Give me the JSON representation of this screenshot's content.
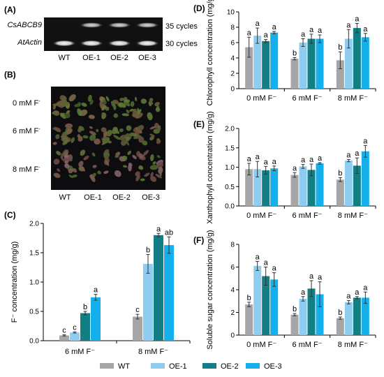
{
  "colors": {
    "WT": "#a6a6a6",
    "OE-1": "#8fcdf0",
    "OE-2": "#117f83",
    "OE-3": "#15b0ec"
  },
  "legend": [
    "WT",
    "OE-1",
    "OE-2",
    "OE-3"
  ],
  "panel_a": {
    "label": "(A)",
    "genes": [
      "CsABCB9",
      "AtActin"
    ],
    "cycles": [
      "35 cycles",
      "30 cycles"
    ],
    "lanes": [
      "WT",
      "OE-1",
      "OE-2",
      "OE-3"
    ]
  },
  "panel_b": {
    "label": "(B)",
    "rows": [
      "0 mM F",
      "6 mM F",
      "8 mM F"
    ],
    "superscript": "-",
    "lanes": [
      "WT",
      "OE-1",
      "OE-2",
      "OE-3"
    ]
  },
  "chart_data": [
    {
      "id": "C",
      "panel_label": "(C)",
      "type": "bar",
      "ylabel": "F⁻ concentration (mg/g)",
      "categories": [
        "6 mM F⁻",
        "8 mM F⁻"
      ],
      "ylim": [
        0,
        2.0
      ],
      "ticks": [
        0.0,
        0.5,
        1.0,
        1.5,
        2.0
      ],
      "tick_labels": [
        "0.0",
        "0.5",
        "1.0",
        "1.5",
        "2.0"
      ],
      "series": [
        {
          "name": "WT",
          "values": [
            0.09,
            0.41
          ],
          "errors": [
            0.01,
            0.04
          ],
          "letters": [
            "c",
            "c"
          ]
        },
        {
          "name": "OE-1",
          "values": [
            0.14,
            1.31
          ],
          "errors": [
            0.01,
            0.16
          ],
          "letters": [
            "c",
            "b"
          ]
        },
        {
          "name": "OE-2",
          "values": [
            0.47,
            1.8
          ],
          "errors": [
            0.03,
            0.03
          ],
          "letters": [
            "b",
            "a"
          ]
        },
        {
          "name": "OE-3",
          "values": [
            0.74,
            1.63
          ],
          "errors": [
            0.05,
            0.14
          ],
          "letters": [
            "a",
            "ab"
          ]
        }
      ]
    },
    {
      "id": "D",
      "panel_label": "(D)",
      "type": "bar",
      "ylabel": "Chlorophyll concentration (mg/g)",
      "categories": [
        "0 mM F⁻",
        "6 mM F⁻",
        "8 mM F⁻"
      ],
      "ylim": [
        0,
        10
      ],
      "ticks": [
        0,
        2,
        4,
        6,
        8,
        10
      ],
      "tick_labels": [
        "0",
        "2",
        "4",
        "6",
        "8",
        "10"
      ],
      "series": [
        {
          "name": "WT",
          "values": [
            5.4,
            3.9,
            3.7
          ],
          "errors": [
            1.3,
            0.15,
            1.1
          ],
          "letters": [
            "a",
            "b",
            "b"
          ]
        },
        {
          "name": "OE-1",
          "values": [
            6.9,
            6.0,
            6.5
          ],
          "errors": [
            1.0,
            0.5,
            1.2
          ],
          "letters": [
            "a",
            "a",
            "a"
          ]
        },
        {
          "name": "OE-2",
          "values": [
            6.2,
            6.5,
            7.9
          ],
          "errors": [
            0.2,
            0.6,
            0.6
          ],
          "letters": [
            "a",
            "a",
            "a"
          ]
        },
        {
          "name": "OE-3",
          "values": [
            7.3,
            6.5,
            6.7
          ],
          "errors": [
            0.15,
            0.5,
            0.5
          ],
          "letters": [
            "a",
            "a",
            "a"
          ]
        }
      ]
    },
    {
      "id": "E",
      "panel_label": "(E)",
      "type": "bar",
      "ylabel": "Xanthophyll concentration (mg/g)",
      "categories": [
        "0 mM F⁻",
        "6 mM F⁻",
        "8 mM F⁻"
      ],
      "ylim": [
        0,
        2.0
      ],
      "ticks": [
        0.0,
        0.5,
        1.0,
        1.5,
        2.0
      ],
      "tick_labels": [
        "0.0",
        "0.5",
        "1.0",
        "1.5",
        "2.0"
      ],
      "series": [
        {
          "name": "WT",
          "values": [
            0.95,
            0.8,
            0.68
          ],
          "errors": [
            0.15,
            0.06,
            0.05
          ],
          "letters": [
            "a",
            "a",
            "b"
          ]
        },
        {
          "name": "OE-1",
          "values": [
            0.95,
            1.02,
            1.17
          ],
          "errors": [
            0.2,
            0.05,
            0.03
          ],
          "letters": [
            "a",
            "a",
            "a"
          ]
        },
        {
          "name": "OE-2",
          "values": [
            0.92,
            0.93,
            1.04
          ],
          "errors": [
            0.1,
            0.15,
            0.2
          ],
          "letters": [
            "a",
            "a",
            "a"
          ]
        },
        {
          "name": "OE-3",
          "values": [
            0.97,
            1.1,
            1.41
          ],
          "errors": [
            0.06,
            0.02,
            0.15
          ],
          "letters": [
            "a",
            "a",
            "a"
          ]
        }
      ]
    },
    {
      "id": "F",
      "panel_label": "(F)",
      "type": "bar",
      "ylabel": "Soluble sugar concentration (mg/g)",
      "categories": [
        "0 mM F⁻",
        "6 mM F⁻",
        "8 mM F⁻"
      ],
      "ylim": [
        0,
        8
      ],
      "ticks": [
        0,
        2,
        4,
        6,
        8
      ],
      "tick_labels": [
        "0",
        "2",
        "4",
        "6",
        "8"
      ],
      "series": [
        {
          "name": "WT",
          "values": [
            2.7,
            1.8,
            1.5
          ],
          "errors": [
            0.2,
            0.1,
            0.1
          ],
          "letters": [
            "b",
            "b",
            "b"
          ]
        },
        {
          "name": "OE-1",
          "values": [
            6.1,
            3.2,
            2.9
          ],
          "errors": [
            0.4,
            0.2,
            0.15
          ],
          "letters": [
            "a",
            "a",
            "a"
          ]
        },
        {
          "name": "OE-2",
          "values": [
            5.2,
            4.1,
            3.3
          ],
          "errors": [
            0.8,
            0.7,
            0.1
          ],
          "letters": [
            "a",
            "a",
            "a"
          ]
        },
        {
          "name": "OE-3",
          "values": [
            4.9,
            3.6,
            3.3
          ],
          "errors": [
            0.6,
            1.1,
            0.5
          ],
          "letters": [
            "a",
            "a",
            "a"
          ]
        }
      ]
    }
  ]
}
